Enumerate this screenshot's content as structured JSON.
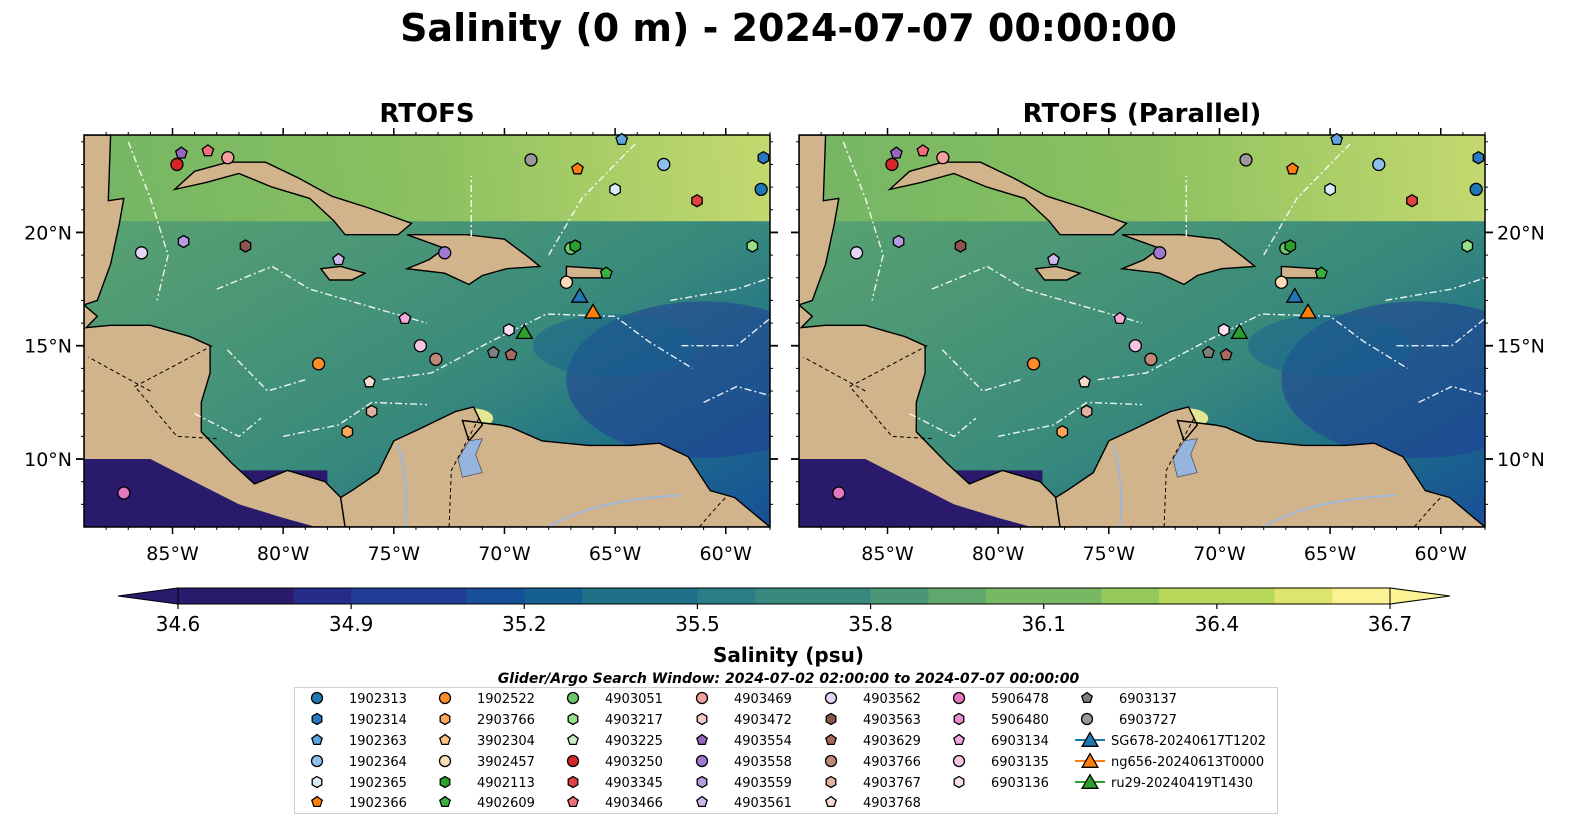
{
  "figure": {
    "title": "Salinity (0 m) - 2024-07-07 00:00:00",
    "panels": [
      {
        "title": "RTOFS"
      },
      {
        "title": "RTOFS (Parallel)"
      }
    ],
    "lon_ticks": [
      "85°W",
      "80°W",
      "75°W",
      "70°W",
      "65°W",
      "60°W"
    ],
    "lat_ticks": [
      "20°N",
      "15°N",
      "10°N"
    ],
    "map_extent": {
      "lon": [
        -89,
        -58
      ],
      "lat": [
        7,
        24.3
      ]
    },
    "colorbar": {
      "label": "Salinity (psu)",
      "ticks": [
        "34.6",
        "34.9",
        "35.2",
        "35.5",
        "35.8",
        "36.1",
        "36.4",
        "36.7"
      ],
      "range": [
        34.6,
        36.7
      ],
      "extend": "both",
      "colormap": "haline",
      "colors": [
        "#2a1a6b",
        "#262b8a",
        "#1f3d96",
        "#174f98",
        "#16608f",
        "#1e6f88",
        "#2a7d84",
        "#38897d",
        "#4a9676",
        "#5fa86d",
        "#78b863",
        "#96c85b",
        "#b8d85c",
        "#dce66d",
        "#fbf294"
      ]
    },
    "search_window": "Glider/Argo Search Window: 2024-07-02 02:00:00 to 2024-07-07 00:00:00",
    "colors": {
      "land": "#d2b48c",
      "river": "#a0b8d8",
      "lake": "#95b5df",
      "deep_water": "#2a1a6b"
    }
  },
  "legend": {
    "columns": [
      [
        {
          "label": "1902313",
          "marker": "circle",
          "color": "#1f77b4"
        },
        {
          "label": "1902314",
          "marker": "hexagon",
          "color": "#2a78c4"
        },
        {
          "label": "1902363",
          "marker": "pentagon",
          "color": "#5ea5e0"
        },
        {
          "label": "1902364",
          "marker": "circle",
          "color": "#8ec0ec"
        },
        {
          "label": "1902365",
          "marker": "hexagon",
          "color": "#d6ecfb"
        },
        {
          "label": "1902366",
          "marker": "pentagon",
          "color": "#ff7f0e"
        }
      ],
      [
        {
          "label": "1902522",
          "marker": "circle",
          "color": "#ff8c2a"
        },
        {
          "label": "2903766",
          "marker": "hexagon",
          "color": "#ffa55c"
        },
        {
          "label": "3902304",
          "marker": "pentagon",
          "color": "#ffc285"
        },
        {
          "label": "3902457",
          "marker": "circle",
          "color": "#ffdcb8"
        },
        {
          "label": "4902113",
          "marker": "hexagon",
          "color": "#2ca02c"
        },
        {
          "label": "4902609",
          "marker": "pentagon",
          "color": "#3cb03c"
        }
      ],
      [
        {
          "label": "4903051",
          "marker": "circle",
          "color": "#6ac86a"
        },
        {
          "label": "4903217",
          "marker": "hexagon",
          "color": "#98df8a"
        },
        {
          "label": "4903225",
          "marker": "pentagon",
          "color": "#c8f0c0"
        },
        {
          "label": "4903250",
          "marker": "circle",
          "color": "#d62728"
        },
        {
          "label": "4903345",
          "marker": "hexagon",
          "color": "#e0403f"
        },
        {
          "label": "4903466",
          "marker": "pentagon",
          "color": "#f0707a"
        }
      ],
      [
        {
          "label": "4903469",
          "marker": "circle",
          "color": "#f4a0a0"
        },
        {
          "label": "4903472",
          "marker": "hexagon",
          "color": "#fbc8c8"
        },
        {
          "label": "4903554",
          "marker": "pentagon",
          "color": "#9467bd"
        },
        {
          "label": "4903558",
          "marker": "circle",
          "color": "#a07ad0"
        },
        {
          "label": "4903559",
          "marker": "hexagon",
          "color": "#b89ae0"
        },
        {
          "label": "4903561",
          "marker": "pentagon",
          "color": "#d0b8ee"
        }
      ],
      [
        {
          "label": "4903562",
          "marker": "circle",
          "color": "#e4d4f6"
        },
        {
          "label": "4903563",
          "marker": "hexagon",
          "color": "#8c564b"
        },
        {
          "label": "4903629",
          "marker": "pentagon",
          "color": "#a86a5c"
        },
        {
          "label": "4903766",
          "marker": "circle",
          "color": "#c08878"
        },
        {
          "label": "4903767",
          "marker": "hexagon",
          "color": "#e0b0a0"
        },
        {
          "label": "4903768",
          "marker": "pentagon",
          "color": "#f6dcd0"
        }
      ],
      [
        {
          "label": "5906478",
          "marker": "circle",
          "color": "#e377c2"
        },
        {
          "label": "5906480",
          "marker": "hexagon",
          "color": "#ec8fd0"
        },
        {
          "label": "6903134",
          "marker": "pentagon",
          "color": "#f4a8dc"
        },
        {
          "label": "6903135",
          "marker": "circle",
          "color": "#f8c4e6"
        },
        {
          "label": "6903136",
          "marker": "hexagon",
          "color": "#fce0f2"
        }
      ],
      [
        {
          "label": "6903137",
          "marker": "pentagon",
          "color": "#7f7f7f"
        },
        {
          "label": "6903727",
          "marker": "circle",
          "color": "#999999"
        },
        {
          "label": "SG678-20240617T1202",
          "marker": "triangle-line",
          "color": "#1f77b4"
        },
        {
          "label": "ng656-20240613T0000",
          "marker": "triangle-line",
          "color": "#ff7f0e"
        },
        {
          "label": "ru29-20240419T1430",
          "marker": "triangle-line",
          "color": "#2ca02c"
        }
      ]
    ]
  },
  "floats": [
    {
      "id": "4903250",
      "lon": -84.8,
      "lat": 23.0
    },
    {
      "id": "4903554",
      "lon": -84.6,
      "lat": 23.5
    },
    {
      "id": "4903466",
      "lon": -83.4,
      "lat": 23.6
    },
    {
      "id": "4903469",
      "lon": -82.5,
      "lat": 23.3
    },
    {
      "id": "4903562",
      "lon": -86.4,
      "lat": 19.1
    },
    {
      "id": "4903559",
      "lon": -84.5,
      "lat": 19.6
    },
    {
      "id": "4903563",
      "lon": -81.7,
      "lat": 19.4
    },
    {
      "id": "4903561",
      "lon": -77.5,
      "lat": 18.8
    },
    {
      "id": "4903558",
      "lon": -72.7,
      "lat": 19.1
    },
    {
      "id": "6903727",
      "lon": -68.8,
      "lat": 23.2
    },
    {
      "id": "1902366",
      "lon": -66.7,
      "lat": 22.8
    },
    {
      "id": "1902363",
      "lon": -64.7,
      "lat": 24.1
    },
    {
      "id": "1902364",
      "lon": -62.8,
      "lat": 23.0
    },
    {
      "id": "1902314",
      "lon": -58.3,
      "lat": 23.3
    },
    {
      "id": "1902365",
      "lon": -65.0,
      "lat": 21.9
    },
    {
      "id": "4903345",
      "lon": -61.3,
      "lat": 21.4
    },
    {
      "id": "1902313",
      "lon": -58.4,
      "lat": 21.9
    },
    {
      "id": "4903217",
      "lon": -58.8,
      "lat": 19.4
    },
    {
      "id": "4903051",
      "lon": -67.0,
      "lat": 19.3
    },
    {
      "id": "4902113",
      "lon": -66.8,
      "lat": 19.4
    },
    {
      "id": "4902609",
      "lon": -65.4,
      "lat": 18.2
    },
    {
      "id": "3902457",
      "lon": -67.2,
      "lat": 17.8
    },
    {
      "id": "6903134",
      "lon": -74.5,
      "lat": 16.2
    },
    {
      "id": "6903135",
      "lon": -73.8,
      "lat": 15.0
    },
    {
      "id": "4903766",
      "lon": -73.1,
      "lat": 14.4
    },
    {
      "id": "6903136",
      "lon": -69.8,
      "lat": 15.7
    },
    {
      "id": "6903137",
      "lon": -70.5,
      "lat": 14.7
    },
    {
      "id": "4903629",
      "lon": -69.7,
      "lat": 14.6
    },
    {
      "id": "1902522",
      "lon": -78.4,
      "lat": 14.2
    },
    {
      "id": "4903768",
      "lon": -76.1,
      "lat": 13.4
    },
    {
      "id": "4903767",
      "lon": -76.0,
      "lat": 12.1
    },
    {
      "id": "2903766",
      "lon": -77.1,
      "lat": 11.2
    },
    {
      "id": "5906478",
      "lon": -87.2,
      "lat": 8.5
    }
  ],
  "gliders": [
    {
      "id": "SG678-20240617T1202",
      "lon": -66.6,
      "lat": 17.2
    },
    {
      "id": "ng656-20240613T0000",
      "lon": -66.0,
      "lat": 16.5
    },
    {
      "id": "ru29-20240419T1430",
      "lon": -69.1,
      "lat": 15.6
    }
  ]
}
